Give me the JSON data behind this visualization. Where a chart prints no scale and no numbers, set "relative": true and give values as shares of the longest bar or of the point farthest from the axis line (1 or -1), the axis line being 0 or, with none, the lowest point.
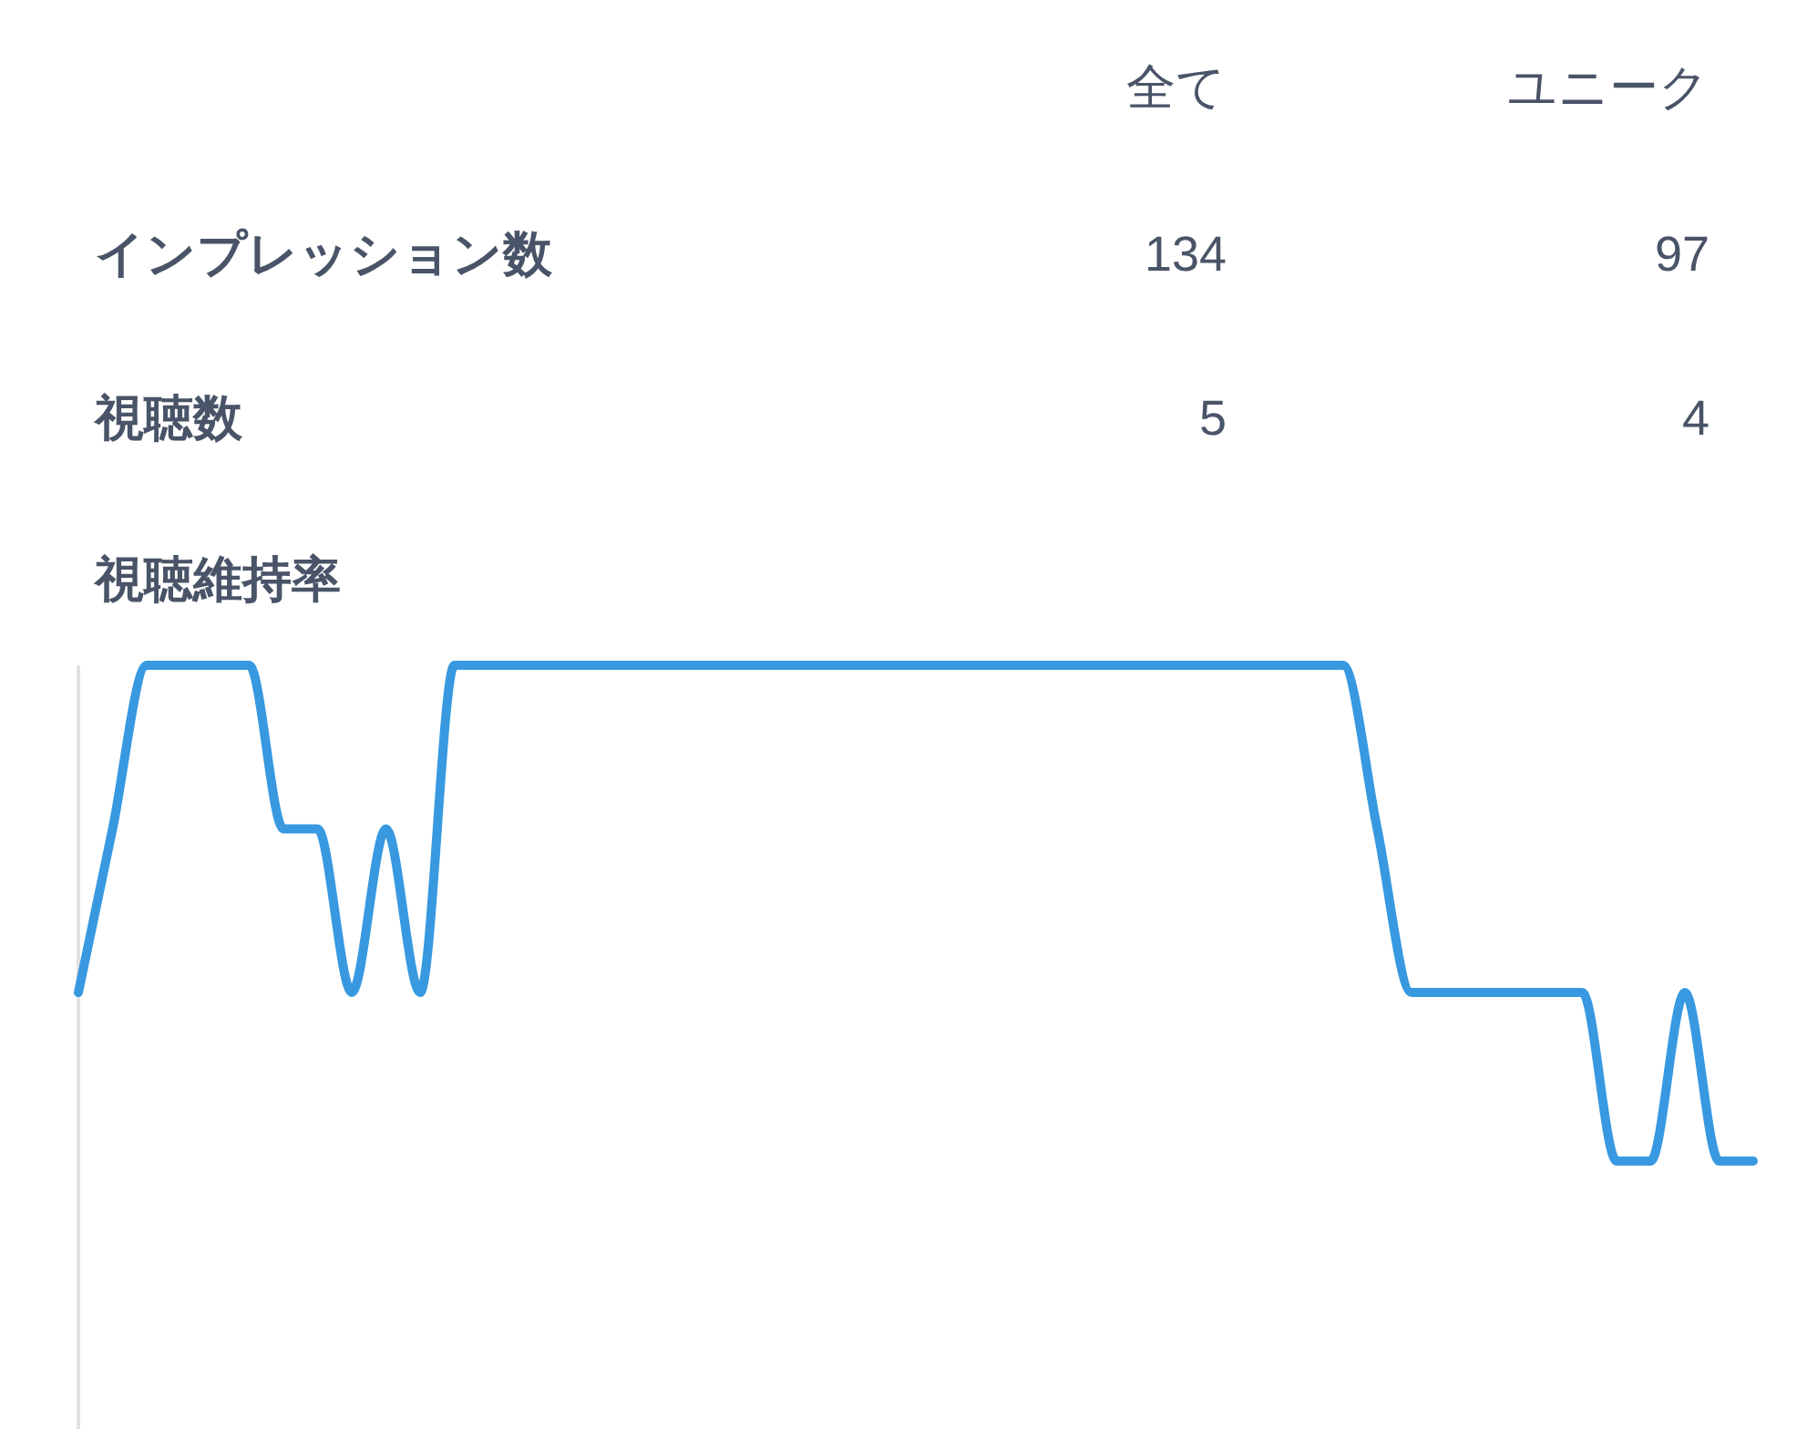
{
  "chart_data": [
    {
      "type": "other",
      "categories": [
        "インプレッション数",
        "視聴数"
      ],
      "series": [
        {
          "name": "全て",
          "values": [
            134,
            5
          ]
        },
        {
          "name": "ユニーク",
          "values": [
            97,
            4
          ]
        }
      ],
      "data_labels": true
    },
    {
      "type": "line",
      "title": "視聴維持率",
      "relative": true,
      "color": "#3899e0",
      "categories": [
        null,
        null,
        null,
        null,
        null,
        null,
        null,
        null,
        null,
        null,
        null,
        null,
        null,
        null,
        null,
        null,
        null,
        null,
        null,
        null,
        null,
        null,
        null,
        null,
        null,
        null,
        null,
        null,
        null,
        null,
        null,
        null,
        null,
        null,
        null,
        null,
        null,
        null,
        null,
        null,
        null,
        null,
        null,
        null,
        null,
        null,
        null,
        null,
        null,
        null
      ],
      "values": [
        0.34,
        0.67,
        1,
        1,
        1,
        1,
        0.67,
        0.67,
        0.34,
        0.67,
        0.34,
        1,
        1,
        1,
        1,
        1,
        1,
        1,
        1,
        1,
        1,
        1,
        1,
        1,
        1,
        1,
        1,
        1,
        1,
        1,
        1,
        1,
        1,
        1,
        1,
        1,
        1,
        1,
        0.67,
        0.34,
        0.34,
        0.34,
        0.34,
        0.34,
        0.34,
        0,
        0,
        0.34,
        0,
        0
      ]
    }
  ]
}
